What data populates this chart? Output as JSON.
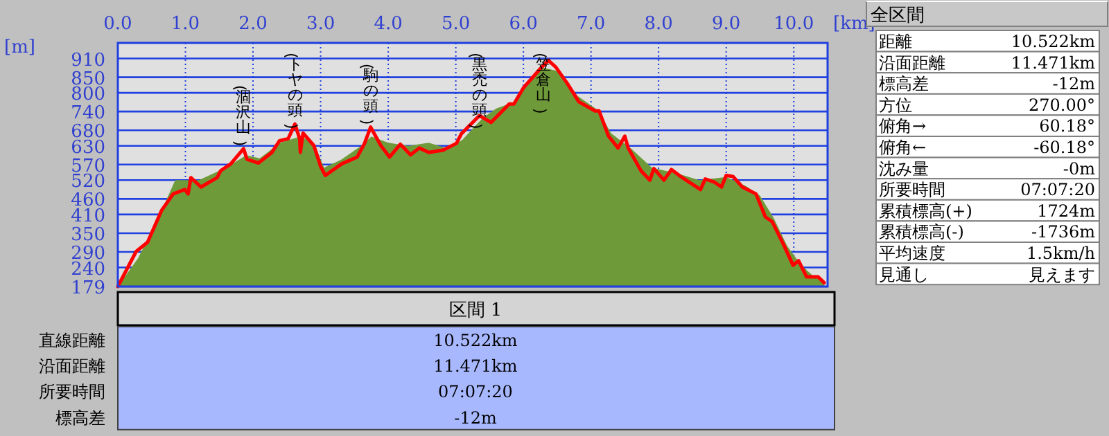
{
  "chart_data": [
    {
      "type": "line",
      "xlabel": "[km]",
      "ylabel": "[m]",
      "xlim": [
        0,
        10.5
      ],
      "ylim": [
        179,
        960
      ],
      "xticks": [
        {
          "value": 0,
          "label": "0.0"
        },
        {
          "value": 1,
          "label": "1.0"
        },
        {
          "value": 2,
          "label": "2.0"
        },
        {
          "value": 3,
          "label": "3.0"
        },
        {
          "value": 4,
          "label": "4.0"
        },
        {
          "value": 5,
          "label": "5.0"
        },
        {
          "value": 6,
          "label": "6.0"
        },
        {
          "value": 7,
          "label": "7.0"
        },
        {
          "value": 8,
          "label": "8.0"
        },
        {
          "value": 9,
          "label": "9.0"
        },
        {
          "value": 10,
          "label": "10.0"
        }
      ],
      "yticks": [
        179,
        240,
        290,
        350,
        410,
        460,
        520,
        570,
        630,
        680,
        740,
        800,
        850,
        910
      ],
      "grid": true,
      "series": [
        {
          "type": "area",
          "color": "#6f9a3a",
          "x": [
            0,
            0.3,
            0.6,
            0.85,
            1.2,
            1.6,
            1.9,
            2.1,
            2.4,
            2.7,
            2.9,
            3.05,
            3.3,
            3.6,
            3.75,
            4.0,
            4.3,
            4.6,
            4.9,
            5.1,
            5.4,
            5.6,
            5.85,
            6.05,
            6.3,
            6.5,
            6.8,
            7.1,
            7.3,
            7.6,
            7.9,
            8.3,
            8.6,
            9.0,
            9.3,
            9.5,
            9.7,
            9.9,
            10.1,
            10.3,
            10.45
          ],
          "values": [
            179,
            270,
            400,
            520,
            520,
            560,
            600,
            590,
            640,
            660,
            640,
            560,
            585,
            630,
            660,
            640,
            630,
            640,
            620,
            650,
            720,
            750,
            770,
            830,
            880,
            870,
            790,
            745,
            670,
            620,
            560,
            540,
            520,
            530,
            500,
            470,
            400,
            310,
            250,
            210,
            195
          ]
        },
        {
          "type": "line",
          "color": "#ff0000",
          "x": [
            0,
            0.27,
            0.44,
            0.65,
            0.82,
            0.99,
            1.04,
            1.08,
            1.23,
            1.47,
            1.52,
            1.67,
            1.86,
            1.91,
            2.08,
            2.28,
            2.39,
            2.52,
            2.62,
            2.69,
            2.7,
            2.74,
            2.9,
            3.0,
            3.07,
            3.31,
            3.54,
            3.65,
            3.74,
            3.89,
            4.02,
            4.18,
            4.33,
            4.46,
            4.6,
            4.81,
            5.01,
            5.08,
            5.35,
            5.52,
            5.69,
            5.79,
            5.86,
            6.0,
            6.24,
            6.37,
            6.48,
            6.65,
            6.82,
            7.06,
            7.12,
            7.26,
            7.4,
            7.5,
            7.55,
            7.74,
            7.87,
            7.93,
            8.08,
            8.19,
            8.35,
            8.62,
            8.69,
            8.83,
            8.93,
            9.0,
            9.1,
            9.24,
            9.44,
            9.58,
            9.68,
            9.85,
            9.99,
            10.07,
            10.19,
            10.36,
            10.45
          ],
          "values": [
            179,
            291,
            321,
            424,
            476,
            490,
            476,
            528,
            498,
            528,
            550,
            572,
            621,
            587,
            575,
            609,
            646,
            653,
            700,
            653,
            609,
            671,
            631,
            564,
            535,
            572,
            594,
            638,
            690,
            631,
            594,
            635,
            601,
            623,
            609,
            616,
            638,
            668,
            727,
            705,
            742,
            764,
            764,
            816,
            875,
            904,
            882,
            830,
            771,
            742,
            742,
            661,
            623,
            661,
            623,
            550,
            520,
            557,
            520,
            554,
            528,
            490,
            524,
            513,
            498,
            535,
            532,
            498,
            476,
            402,
            387,
            313,
            247,
            262,
            210,
            210,
            191
          ]
        }
      ],
      "annotations": [
        {
          "text": "(涸沢山)",
          "x": 1.86,
          "y": 621
        },
        {
          "text": "(トヤの頭)",
          "x": 2.62,
          "y": 700
        },
        {
          "text": "(駒の頭)",
          "x": 3.74,
          "y": 690
        },
        {
          "text": "(黒禿の頭)",
          "x": 5.35,
          "y": 727
        },
        {
          "text": "(笠倉山)",
          "x": 6.3,
          "y": 904
        }
      ]
    },
    {
      "type": "other",
      "title": "全区間",
      "annotations": [
        "距離",
        "10.522km",
        "沿面距離",
        "11.471km",
        "標高差",
        "-12m",
        "方位",
        "270.00°",
        "俯角→",
        "60.18°",
        "俯角←",
        "-60.18°",
        "沈み量",
        "-0m",
        "所要時間",
        "07:07:20",
        "累積標高(+)",
        "1724m",
        "累積標高(-)",
        "-1736m",
        "平均速度",
        "1.5km/h",
        "見通し",
        "見えます"
      ]
    },
    {
      "type": "other",
      "title": "区間 1",
      "annotations": [
        "直線距離",
        "10.522km",
        "沿面距離",
        "11.471km",
        "所要時間",
        "07:07:20",
        "標高差",
        "-12m"
      ]
    }
  ]
}
